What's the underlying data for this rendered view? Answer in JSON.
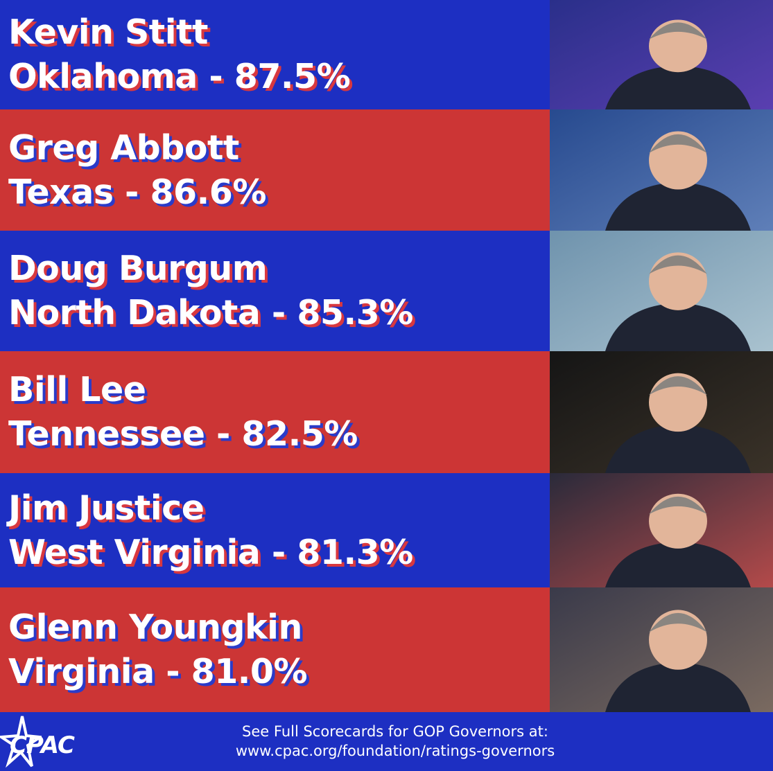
{
  "rows": [
    {
      "name": "Kevin Stitt",
      "line": "Oklahoma - 87.5%"
    },
    {
      "name": "Greg Abbott",
      "line": "Texas - 86.6%"
    },
    {
      "name": "Doug Burgum",
      "line": "North Dakota - 85.3%"
    },
    {
      "name": "Bill Lee",
      "line": "Tennessee - 82.5%"
    },
    {
      "name": "Jim Justice",
      "line": "West Virginia - 81.3%"
    },
    {
      "name": "Glenn Youngkin",
      "line": "Virginia - 81.0%"
    }
  ],
  "footer": {
    "logo": "CPAC",
    "line1": "See Full Scorecards for GOP Governors at:",
    "line2": "www.cpac.org/foundation/ratings-governors"
  }
}
